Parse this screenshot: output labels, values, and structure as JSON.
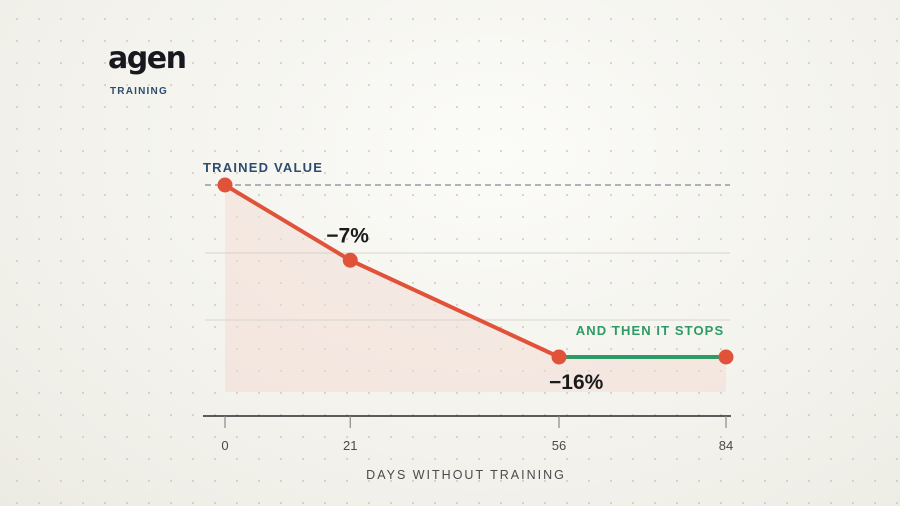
{
  "brand": {
    "name": "agen",
    "subtitle": "TRAINING"
  },
  "colors": {
    "line": "#e0533a",
    "plateau": "#2e9a65",
    "reference": "#2d4d6e",
    "fill": "#f3dcd6",
    "axis": "#2a2a2a"
  },
  "chart_data": {
    "type": "line",
    "xlabel": "DAYS WITHOUT TRAINING",
    "ylabel": "",
    "x_ticks": [
      0,
      21,
      56,
      84
    ],
    "xlim": [
      0,
      84
    ],
    "ylim": [
      -20,
      0
    ],
    "grid": true,
    "reference_line": {
      "label": "TRAINED VALUE",
      "y": 0
    },
    "series": [
      {
        "x": [
          0,
          21,
          56
        ],
        "y": [
          0,
          -7,
          -16
        ],
        "color": "#e0533a"
      },
      {
        "x": [
          56,
          84
        ],
        "y": [
          -16,
          -16
        ],
        "color": "#2e9a65"
      }
    ],
    "annotations": [
      {
        "text": "−7%",
        "x": 21,
        "y": -7
      },
      {
        "text": "−16%",
        "x": 56,
        "y": -16
      },
      {
        "text": "AND THEN IT STOPS",
        "x": 70,
        "y": -16
      }
    ]
  }
}
